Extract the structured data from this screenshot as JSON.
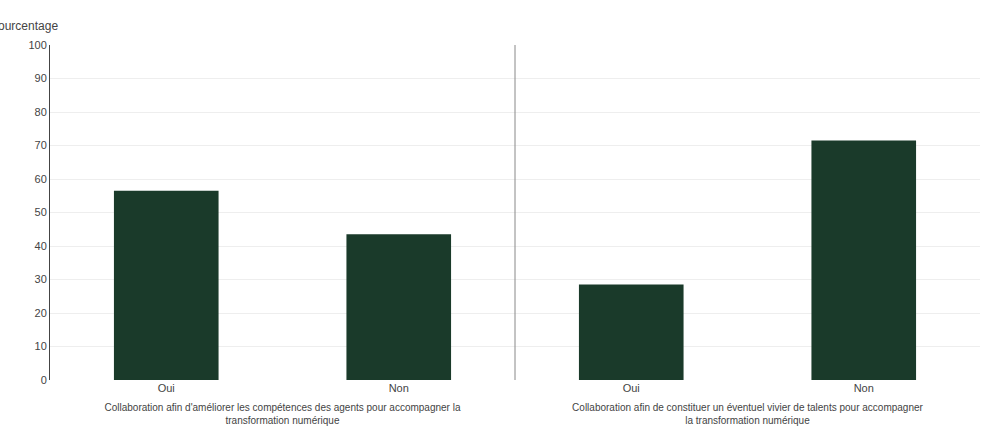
{
  "chart_data": [
    {
      "type": "bar",
      "xlabel": "Collaboration afin d'améliorer les compétences des agents pour accompagner la\ntransformation numérique",
      "ylabel": "Pourcentage",
      "categories": [
        "Oui",
        "Non"
      ],
      "values": [
        56.5,
        43.5
      ],
      "color": "#1a3a2a",
      "ylim": [
        0,
        100
      ],
      "yticks": [
        0,
        10,
        20,
        30,
        40,
        50,
        60,
        70,
        80,
        90,
        100
      ],
      "grid": true
    },
    {
      "type": "bar",
      "xlabel": "Collaboration afin de constituer un éventuel vivier de talents pour accompagner\nla transformation numérique",
      "categories": [
        "Oui",
        "Non"
      ],
      "values": [
        28.5,
        71.5
      ],
      "color": "#1a3a2a",
      "ylim": [
        0,
        100
      ],
      "yticks": [
        0,
        10,
        20,
        30,
        40,
        50,
        60,
        70,
        80,
        90,
        100
      ],
      "grid": true,
      "tick_labels": "x"
    }
  ]
}
